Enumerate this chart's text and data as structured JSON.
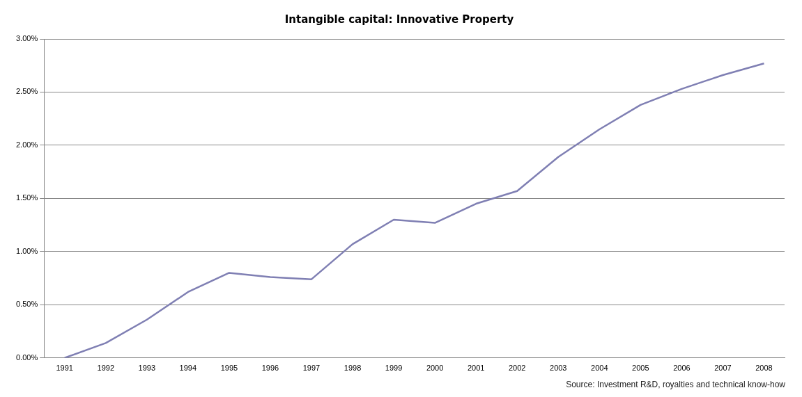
{
  "chart_data": {
    "type": "line",
    "title": "Intangible capital: Innovative Property",
    "categories": [
      "1991",
      "1992",
      "1993",
      "1994",
      "1995",
      "1996",
      "1997",
      "1998",
      "1999",
      "2000",
      "2001",
      "2002",
      "2003",
      "2004",
      "2005",
      "2006",
      "2007",
      "2008"
    ],
    "series": [
      {
        "color": "#7f7fb3",
        "values": [
          0,
          0.14,
          0.36,
          0.62,
          0.8,
          0.76,
          0.74,
          1.07,
          1.3,
          1.27,
          1.45,
          1.57,
          1.89,
          2.15,
          2.38,
          2.53,
          2.66,
          2.77
        ]
      }
    ],
    "ylim": [
      0,
      3
    ],
    "yticks": [
      {
        "value": 0,
        "label": "0.00%"
      },
      {
        "value": 0.5,
        "label": "0.50%"
      },
      {
        "value": 1,
        "label": "1.00%"
      },
      {
        "value": 1.5,
        "label": "1.50%"
      },
      {
        "value": 2,
        "label": "2.00%"
      },
      {
        "value": 2.5,
        "label": "2.50%"
      },
      {
        "value": 3,
        "label": "3.00%"
      }
    ],
    "grid": "y",
    "legend": false,
    "marker": "none",
    "line_style": "solid",
    "annotations": [
      "Source: Investment R&D, royalties and technical know-how"
    ]
  }
}
